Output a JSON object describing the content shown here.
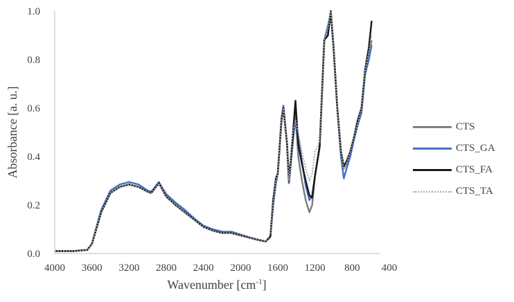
{
  "chart_data": {
    "type": "line",
    "title": "",
    "xlabel": "Wavenumber [cm-1]",
    "ylabel": "Absorbance [a. u.]",
    "xlim": [
      4000,
      400
    ],
    "ylim": [
      0.0,
      1.0
    ],
    "x_reversed": true,
    "xticks": [
      4000,
      3600,
      3200,
      2800,
      2400,
      2000,
      1600,
      1200,
      800,
      400
    ],
    "yticks": [
      0.0,
      0.2,
      0.4,
      0.6,
      0.8,
      1.0
    ],
    "xtick_labels": [
      "4000",
      "3600",
      "3200",
      "2800",
      "2400",
      "2000",
      "1600",
      "1200",
      "800",
      "400"
    ],
    "ytick_labels": [
      "0.0",
      "0.2",
      "0.4",
      "0.6",
      "0.8",
      "1.0"
    ],
    "grid": false,
    "legend_position": "right",
    "x": [
      4000,
      3800,
      3650,
      3600,
      3500,
      3400,
      3300,
      3200,
      3100,
      3000,
      2960,
      2920,
      2880,
      2850,
      2800,
      2700,
      2600,
      2500,
      2400,
      2300,
      2200,
      2100,
      2000,
      1900,
      1800,
      1730,
      1680,
      1650,
      1620,
      1600,
      1560,
      1540,
      1500,
      1480,
      1440,
      1410,
      1380,
      1340,
      1300,
      1260,
      1230,
      1200,
      1150,
      1100,
      1060,
      1030,
      1000,
      960,
      920,
      890,
      860,
      820,
      780,
      740,
      700,
      660,
      620,
      590
    ],
    "series": [
      {
        "name": "CTS",
        "color": "#808080",
        "dash": "solid",
        "values": [
          0.01,
          0.01,
          0.015,
          0.04,
          0.17,
          0.25,
          0.275,
          0.285,
          0.275,
          0.255,
          0.25,
          0.27,
          0.29,
          0.27,
          0.235,
          0.2,
          0.17,
          0.14,
          0.11,
          0.095,
          0.085,
          0.085,
          0.075,
          0.065,
          0.055,
          0.05,
          0.07,
          0.2,
          0.29,
          0.33,
          0.55,
          0.6,
          0.45,
          0.29,
          0.45,
          0.58,
          0.4,
          0.3,
          0.22,
          0.17,
          0.2,
          0.32,
          0.44,
          0.88,
          0.93,
          1.0,
          0.85,
          0.6,
          0.42,
          0.35,
          0.37,
          0.42,
          0.48,
          0.54,
          0.6,
          0.75,
          0.82,
          0.88
        ]
      },
      {
        "name": "CTS_GA",
        "color": "#4472C4",
        "dash": "solid",
        "values": [
          0.01,
          0.01,
          0.015,
          0.04,
          0.18,
          0.26,
          0.285,
          0.295,
          0.285,
          0.26,
          0.255,
          0.275,
          0.295,
          0.275,
          0.245,
          0.21,
          0.18,
          0.145,
          0.115,
          0.1,
          0.09,
          0.09,
          0.078,
          0.066,
          0.056,
          0.05,
          0.07,
          0.2,
          0.29,
          0.33,
          0.56,
          0.61,
          0.45,
          0.29,
          0.46,
          0.55,
          0.48,
          0.38,
          0.28,
          0.22,
          0.24,
          0.32,
          0.44,
          0.88,
          0.94,
          0.99,
          0.85,
          0.6,
          0.4,
          0.31,
          0.35,
          0.4,
          0.47,
          0.53,
          0.58,
          0.74,
          0.8,
          0.86
        ]
      },
      {
        "name": "CTS_FA",
        "color": "#1a1a1a",
        "dash": "solid",
        "values": [
          0.01,
          0.01,
          0.015,
          0.04,
          0.17,
          0.25,
          0.275,
          0.285,
          0.275,
          0.255,
          0.25,
          0.27,
          0.29,
          0.27,
          0.235,
          0.2,
          0.17,
          0.14,
          0.11,
          0.095,
          0.085,
          0.085,
          0.075,
          0.065,
          0.055,
          0.05,
          0.07,
          0.22,
          0.31,
          0.33,
          0.55,
          0.6,
          0.45,
          0.3,
          0.48,
          0.63,
          0.45,
          0.37,
          0.3,
          0.24,
          0.23,
          0.32,
          0.44,
          0.88,
          0.9,
          1.0,
          0.85,
          0.6,
          0.42,
          0.36,
          0.38,
          0.42,
          0.48,
          0.55,
          0.6,
          0.76,
          0.85,
          0.96
        ]
      },
      {
        "name": "CTS_TA",
        "color": "#a6a6a6",
        "dash": "dotted",
        "values": [
          0.01,
          0.01,
          0.015,
          0.04,
          0.17,
          0.25,
          0.275,
          0.285,
          0.275,
          0.255,
          0.25,
          0.27,
          0.29,
          0.27,
          0.235,
          0.2,
          0.17,
          0.14,
          0.11,
          0.095,
          0.085,
          0.085,
          0.075,
          0.065,
          0.055,
          0.05,
          0.08,
          0.21,
          0.3,
          0.33,
          0.55,
          0.6,
          0.45,
          0.3,
          0.5,
          0.55,
          0.5,
          0.42,
          0.35,
          0.3,
          0.33,
          0.42,
          0.46,
          0.88,
          0.93,
          1.0,
          0.85,
          0.6,
          0.42,
          0.35,
          0.37,
          0.42,
          0.48,
          0.54,
          0.6,
          0.76,
          0.83,
          0.9
        ]
      }
    ]
  },
  "legend": {
    "items": [
      {
        "label": "CTS",
        "color": "#808080",
        "style": "solid"
      },
      {
        "label": "CTS_GA",
        "color": "#4472C4",
        "style": "solid"
      },
      {
        "label": "CTS_FA",
        "color": "#1a1a1a",
        "style": "solid"
      },
      {
        "label": "CTS_TA",
        "color": "#a6a6a6",
        "style": "dotted"
      }
    ]
  },
  "axes": {
    "xlabel_main": "Wavenumber [cm",
    "xlabel_sup": "-1",
    "xlabel_end": "]",
    "ylabel": "Absorbance [a. u.]"
  }
}
